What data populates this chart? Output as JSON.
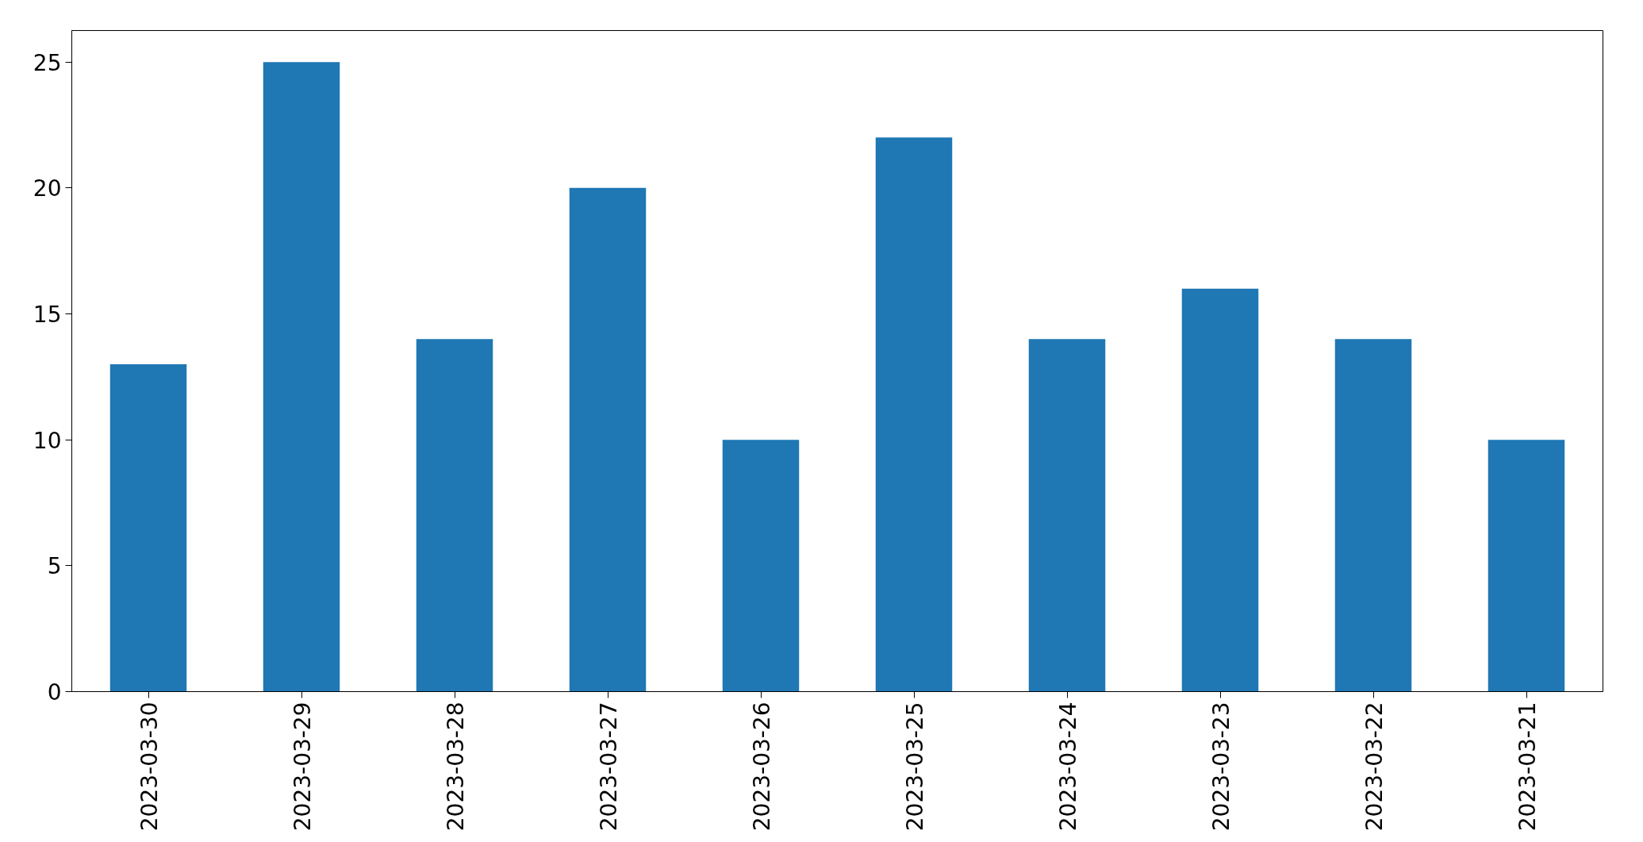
{
  "chart_data": {
    "type": "bar",
    "categories": [
      "2023-03-30",
      "2023-03-29",
      "2023-03-28",
      "2023-03-27",
      "2023-03-26",
      "2023-03-25",
      "2023-03-24",
      "2023-03-23",
      "2023-03-22",
      "2023-03-21"
    ],
    "values": [
      13,
      25,
      14,
      20,
      10,
      22,
      14,
      16,
      14,
      10
    ],
    "color": "#1f77b4",
    "ylim": [
      0,
      26.25
    ],
    "yticks": [
      0,
      5,
      10,
      15,
      20,
      25
    ]
  }
}
